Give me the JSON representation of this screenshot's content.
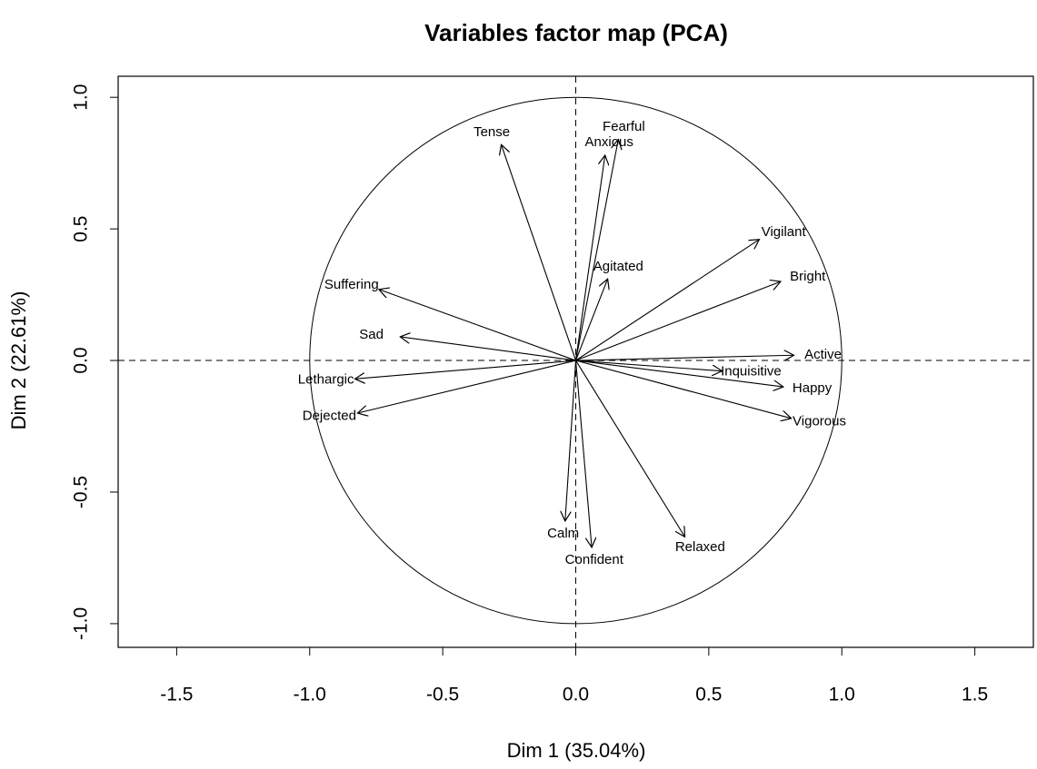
{
  "chart_data": {
    "type": "vector",
    "title": "Variables factor map (PCA)",
    "x_label": "Dim 1 (35.04%)",
    "y_label": "Dim 2 (22.61%)",
    "labels": [
      "Tense",
      "Anxious",
      "Fearful",
      "Vigilant",
      "Bright",
      "Agitated",
      "Suffering",
      "Sad",
      "Lethargic",
      "Dejected",
      "Active",
      "Inquisitive",
      "Happy",
      "Vigorous",
      "Relaxed",
      "Calm",
      "Confident"
    ],
    "x": [
      -0.28,
      0.11,
      0.16,
      0.69,
      0.77,
      0.12,
      -0.74,
      -0.66,
      -0.83,
      -0.82,
      0.82,
      0.55,
      0.78,
      0.81,
      0.41,
      -0.04,
      0.06
    ],
    "y": [
      0.82,
      0.78,
      0.84,
      0.46,
      0.3,
      0.31,
      0.27,
      0.09,
      -0.07,
      -0.2,
      0.02,
      -0.04,
      -0.1,
      -0.22,
      -0.67,
      -0.61,
      -0.71
    ],
    "color": "#000000",
    "xlim": [
      -1.72,
      1.72
    ],
    "ylim": [
      -1.09,
      1.08
    ],
    "xticks": [
      -1.5,
      {
        "value": -1.0,
        "label": "-1.0"
      },
      -0.5,
      {
        "value": 0.0,
        "label": "0.0"
      },
      0.5,
      {
        "value": 1.0,
        "label": "1.0"
      },
      1.5
    ],
    "yticks": [
      {
        "value": -1.0,
        "label": "-1.0"
      },
      -0.5,
      {
        "value": 0.0,
        "label": "0.0"
      },
      0.5,
      {
        "value": 1.0,
        "label": "1.0"
      }
    ]
  }
}
